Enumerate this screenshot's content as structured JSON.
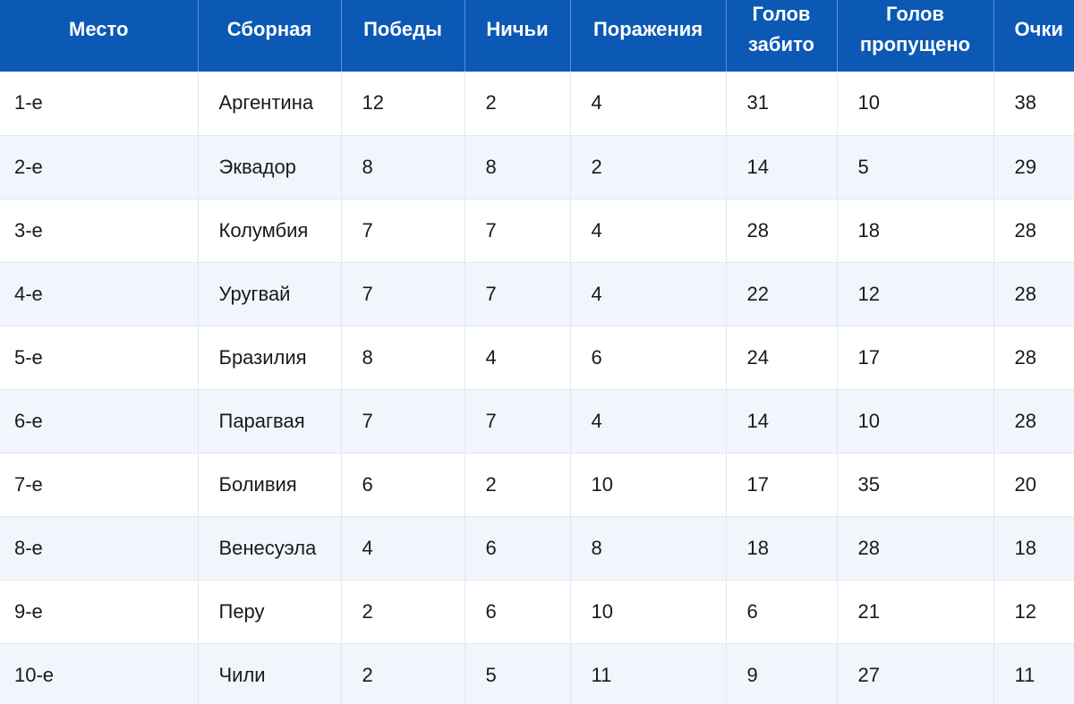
{
  "table": {
    "headers": [
      "Место",
      "Сборная",
      "Победы",
      "Ничьи",
      "Поражения",
      "Голов забито",
      "Голов пропущено",
      "Очки"
    ],
    "rows": [
      [
        "1-е",
        "Аргентина",
        "12",
        "2",
        "4",
        "31",
        "10",
        "38"
      ],
      [
        "2-е",
        "Эквадор",
        "8",
        "8",
        "2",
        "14",
        "5",
        "29"
      ],
      [
        "3-е",
        "Колумбия",
        "7",
        "7",
        "4",
        "28",
        "18",
        "28"
      ],
      [
        "4-е",
        "Уругвай",
        "7",
        "7",
        "4",
        "22",
        "12",
        "28"
      ],
      [
        "5-е",
        "Бразилия",
        "8",
        "4",
        "6",
        "24",
        "17",
        "28"
      ],
      [
        "6-е",
        "Парагвая",
        "7",
        "7",
        "4",
        "14",
        "10",
        "28"
      ],
      [
        "7-е",
        "Боливия",
        "6",
        "2",
        "10",
        "17",
        "35",
        "20"
      ],
      [
        "8-е",
        "Венесуэла",
        "4",
        "6",
        "8",
        "18",
        "28",
        "18"
      ],
      [
        "9-е",
        "Перу",
        "2",
        "6",
        "10",
        "6",
        "21",
        "12"
      ],
      [
        "10-е",
        "Чили",
        "2",
        "5",
        "11",
        "9",
        "27",
        "11"
      ]
    ]
  },
  "colors": {
    "header_bg": "#0b59b5",
    "header_text": "#ffffff",
    "row_alt_bg": "#f1f6fd",
    "row_bg": "#ffffff"
  }
}
